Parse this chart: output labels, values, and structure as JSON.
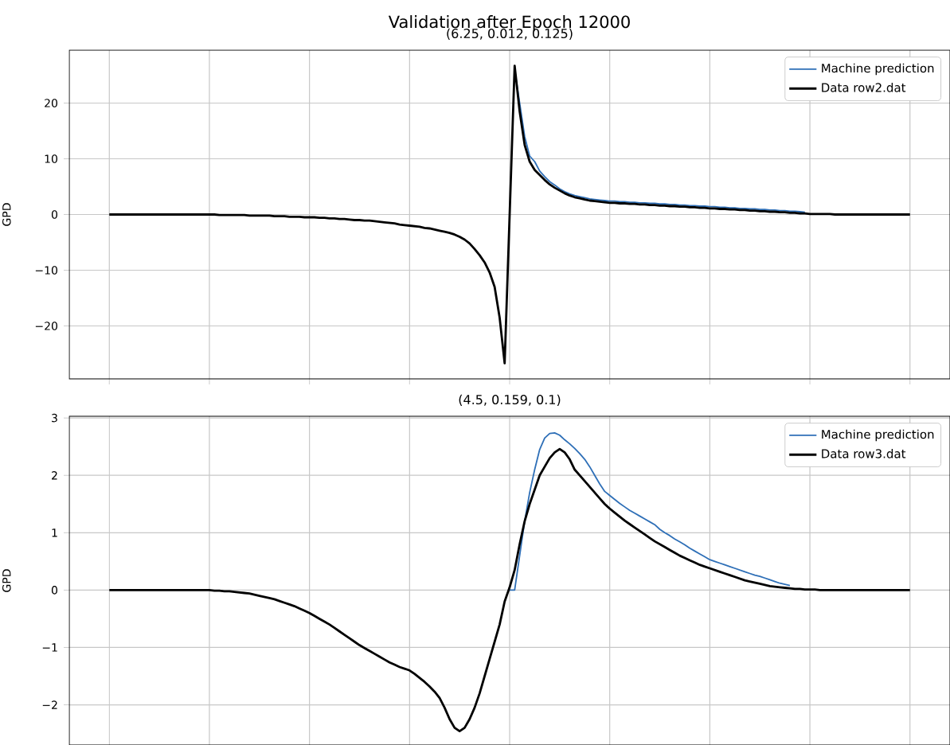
{
  "chart_data": [
    {
      "type": "line",
      "title": "Validation after Epoch 12000",
      "subtitle": "(6.25, 0.012, 0.125)",
      "ylabel": "GPD",
      "categories": [
        null,
        null,
        null,
        null,
        null,
        null,
        null,
        null,
        null,
        null,
        null,
        null,
        null,
        null,
        null,
        null,
        null,
        null,
        null,
        null,
        null,
        null,
        null,
        null,
        null,
        null,
        null,
        null,
        null,
        null,
        null,
        null,
        null,
        null,
        null,
        null,
        null,
        null,
        null,
        null,
        null,
        null,
        null,
        null,
        null,
        null,
        null,
        null,
        null,
        null,
        null,
        null,
        null,
        null,
        null,
        null,
        null,
        null,
        null,
        null,
        null,
        null,
        null,
        null,
        null,
        null,
        null,
        null,
        null,
        null,
        null,
        null,
        null,
        null,
        null,
        null,
        null,
        null,
        null,
        null,
        null,
        null,
        null,
        null,
        null,
        null,
        null,
        null,
        null,
        null,
        null,
        null,
        null,
        null,
        null,
        null,
        null,
        null,
        null,
        null,
        null,
        null,
        null,
        null,
        null,
        null,
        null,
        null,
        null,
        null,
        null,
        null,
        null,
        null,
        null,
        null,
        null,
        null,
        null,
        null,
        null,
        null,
        null,
        null,
        null,
        null,
        null,
        null,
        null,
        null,
        null,
        null,
        null,
        null,
        null,
        null,
        null,
        null,
        null,
        null,
        null,
        null,
        null,
        null,
        null,
        null,
        null,
        null,
        null,
        null,
        null,
        null,
        null,
        null,
        null,
        null,
        null,
        null,
        null,
        null,
        null
      ],
      "ylim": [
        -29.5,
        29.5
      ],
      "yticks": [
        {
          "value": -20,
          "label": "−20"
        },
        {
          "value": -10,
          "label": "−10"
        },
        0,
        10,
        20
      ],
      "tick_labels": "y",
      "grid": true,
      "legend": "top right",
      "series": [
        {
          "name": "Machine prediction",
          "color": "#2e6fb7",
          "values": [
            null,
            null,
            null,
            null,
            null,
            null,
            null,
            null,
            null,
            null,
            null,
            null,
            null,
            null,
            null,
            null,
            null,
            null,
            null,
            null,
            null,
            null,
            null,
            null,
            null,
            null,
            null,
            null,
            null,
            null,
            null,
            null,
            null,
            null,
            null,
            null,
            null,
            null,
            null,
            null,
            null,
            null,
            null,
            null,
            null,
            null,
            null,
            null,
            null,
            null,
            null,
            null,
            null,
            null,
            null,
            null,
            null,
            null,
            null,
            null,
            null,
            null,
            null,
            null,
            null,
            null,
            null,
            null,
            null,
            null,
            null,
            null,
            null,
            null,
            null,
            null,
            null,
            null,
            null,
            null,
            null,
            26,
            20,
            14,
            10.5,
            9.5,
            7.8,
            6.8,
            5.9,
            5.3,
            4.6,
            4.1,
            3.7,
            3.4,
            3.2,
            3.0,
            2.8,
            2.7,
            2.6,
            2.5,
            2.4,
            2.4,
            2.3,
            2.3,
            2.2,
            2.2,
            2.1,
            2.1,
            2.0,
            2.0,
            1.9,
            1.9,
            1.8,
            1.8,
            1.7,
            1.7,
            1.6,
            1.6,
            1.5,
            1.5,
            1.4,
            1.4,
            1.3,
            1.3,
            1.2,
            1.2,
            1.1,
            1.1,
            1.0,
            1.0,
            0.9,
            0.9,
            0.8,
            0.8,
            0.7,
            0.7,
            0.6,
            0.6,
            0.5,
            0.4,
            null,
            null,
            null,
            null,
            null,
            null,
            null,
            null,
            null,
            null,
            null,
            null,
            null,
            null,
            null,
            null,
            null,
            null,
            null,
            null,
            null
          ]
        },
        {
          "name": "Data row2.dat",
          "color": "#000000",
          "values": [
            0,
            0,
            0,
            0,
            0,
            0,
            0,
            0,
            0,
            0,
            0,
            0,
            0,
            0,
            0,
            0,
            0,
            0,
            0,
            0,
            0,
            0,
            -0.1,
            -0.1,
            -0.1,
            -0.1,
            -0.1,
            -0.1,
            -0.2,
            -0.2,
            -0.2,
            -0.2,
            -0.2,
            -0.3,
            -0.3,
            -0.3,
            -0.4,
            -0.4,
            -0.4,
            -0.5,
            -0.5,
            -0.5,
            -0.6,
            -0.6,
            -0.7,
            -0.7,
            -0.8,
            -0.8,
            -0.9,
            -1.0,
            -1.0,
            -1.1,
            -1.1,
            -1.2,
            -1.3,
            -1.4,
            -1.5,
            -1.6,
            -1.8,
            -1.9,
            -2.0,
            -2.1,
            -2.2,
            -2.4,
            -2.5,
            -2.7,
            -2.9,
            -3.1,
            -3.3,
            -3.6,
            -4.0,
            -4.5,
            -5.2,
            -6.2,
            -7.3,
            -8.6,
            -10.4,
            -13,
            -18.5,
            -26.7,
            0,
            26.7,
            18.5,
            12.5,
            9.5,
            8,
            7.1,
            6.2,
            5.4,
            4.8,
            4.3,
            3.8,
            3.4,
            3.1,
            2.9,
            2.7,
            2.5,
            2.4,
            2.3,
            2.2,
            2.1,
            2.1,
            2.0,
            2.0,
            1.9,
            1.9,
            1.8,
            1.8,
            1.7,
            1.7,
            1.6,
            1.6,
            1.5,
            1.5,
            1.4,
            1.4,
            1.3,
            1.3,
            1.2,
            1.2,
            1.1,
            1.1,
            1.0,
            1.0,
            0.9,
            0.9,
            0.8,
            0.8,
            0.7,
            0.7,
            0.6,
            0.6,
            0.5,
            0.5,
            0.4,
            0.4,
            0.3,
            0.3,
            0.2,
            0.2,
            0.1,
            0.1,
            0.1,
            0.1,
            0.1,
            0,
            0,
            0,
            0,
            0,
            0,
            0,
            0,
            0,
            0,
            0,
            0,
            0,
            0,
            0,
            0
          ]
        }
      ]
    },
    {
      "type": "line",
      "title": "(4.5, 0.159, 0.1)",
      "ylabel": "GPD",
      "categories": [
        null,
        null,
        null,
        null,
        null,
        null,
        null,
        null,
        null,
        null,
        null,
        null,
        null,
        null,
        null,
        null,
        null,
        null,
        null,
        null,
        null,
        null,
        null,
        null,
        null,
        null,
        null,
        null,
        null,
        null,
        null,
        null,
        null,
        null,
        null,
        null,
        null,
        null,
        null,
        null,
        null,
        null,
        null,
        null,
        null,
        null,
        null,
        null,
        null,
        null,
        null,
        null,
        null,
        null,
        null,
        null,
        null,
        null,
        null,
        null,
        null,
        null,
        null,
        null,
        null,
        null,
        null,
        null,
        null,
        null,
        null,
        null,
        null,
        null,
        null,
        null,
        null,
        null,
        null,
        null,
        null,
        null,
        null,
        null,
        null,
        null,
        null,
        null,
        null,
        null,
        null,
        null,
        null,
        null,
        null,
        null,
        null,
        null,
        null,
        null,
        null,
        null,
        null,
        null,
        null,
        null,
        null,
        null,
        null,
        null,
        null,
        null,
        null,
        null,
        null,
        null,
        null,
        null,
        null,
        null,
        null,
        null,
        null,
        null,
        null,
        null,
        null,
        null,
        null,
        null,
        null,
        null,
        null,
        null,
        null,
        null,
        null,
        null,
        null,
        null,
        null,
        null,
        null,
        null,
        null,
        null,
        null,
        null,
        null,
        null,
        null,
        null,
        null,
        null,
        null,
        null,
        null,
        null,
        null,
        null,
        null
      ],
      "ylim": [
        -2.7,
        3.03
      ],
      "yticks": [
        {
          "value": -2,
          "label": "−2"
        },
        {
          "value": -1,
          "label": "−1"
        },
        0,
        1,
        2,
        3
      ],
      "tick_labels": "y",
      "grid": true,
      "legend": "top right",
      "series": [
        {
          "name": "Machine prediction",
          "color": "#2e6fb7",
          "values": [
            null,
            null,
            null,
            null,
            null,
            null,
            null,
            null,
            null,
            null,
            null,
            null,
            null,
            null,
            null,
            null,
            null,
            null,
            null,
            null,
            null,
            null,
            null,
            null,
            null,
            null,
            null,
            null,
            null,
            null,
            null,
            null,
            null,
            null,
            null,
            null,
            null,
            null,
            null,
            null,
            null,
            null,
            null,
            null,
            null,
            null,
            null,
            null,
            null,
            null,
            null,
            null,
            null,
            null,
            null,
            null,
            null,
            null,
            null,
            null,
            null,
            null,
            null,
            null,
            null,
            null,
            null,
            null,
            null,
            null,
            null,
            null,
            null,
            null,
            null,
            null,
            null,
            null,
            null,
            null,
            0,
            0,
            0.6,
            1.2,
            1.7,
            2.1,
            2.45,
            2.65,
            2.73,
            2.74,
            2.7,
            2.62,
            2.55,
            2.47,
            2.38,
            2.28,
            2.15,
            2.0,
            1.85,
            1.72,
            1.65,
            1.58,
            1.51,
            1.45,
            1.39,
            1.34,
            1.29,
            1.24,
            1.19,
            1.14,
            1.06,
            1.0,
            0.95,
            0.89,
            0.84,
            0.79,
            0.73,
            0.68,
            0.63,
            0.58,
            0.53,
            0.5,
            0.47,
            0.44,
            0.41,
            0.38,
            0.35,
            0.32,
            0.29,
            0.26,
            0.24,
            0.21,
            0.18,
            0.15,
            0.12,
            0.1,
            0.08,
            null,
            null,
            null,
            null,
            null,
            null,
            null,
            null,
            null,
            null,
            null,
            null,
            null,
            null,
            null,
            null,
            null,
            null,
            null,
            null,
            null,
            null,
            null,
            null
          ]
        },
        {
          "name": "Data row3.dat",
          "color": "#000000",
          "values": [
            0,
            0,
            0,
            0,
            0,
            0,
            0,
            0,
            0,
            0,
            0,
            0,
            0,
            0,
            0,
            0,
            0,
            0,
            0,
            0,
            0,
            -0.01,
            -0.01,
            -0.02,
            -0.02,
            -0.03,
            -0.04,
            -0.05,
            -0.06,
            -0.08,
            -0.1,
            -0.12,
            -0.14,
            -0.16,
            -0.19,
            -0.22,
            -0.25,
            -0.28,
            -0.32,
            -0.36,
            -0.4,
            -0.45,
            -0.5,
            -0.55,
            -0.6,
            -0.66,
            -0.72,
            -0.78,
            -0.84,
            -0.9,
            -0.96,
            -1.01,
            -1.06,
            -1.11,
            -1.16,
            -1.21,
            -1.26,
            -1.3,
            -1.34,
            -1.37,
            -1.4,
            -1.46,
            -1.53,
            -1.6,
            -1.68,
            -1.77,
            -1.88,
            -2.05,
            -2.25,
            -2.4,
            -2.46,
            -2.4,
            -2.25,
            -2.05,
            -1.8,
            -1.5,
            -1.2,
            -0.9,
            -0.6,
            -0.2,
            0.05,
            0.35,
            0.8,
            1.2,
            1.5,
            1.75,
            2.0,
            2.15,
            2.3,
            2.4,
            2.46,
            2.4,
            2.28,
            2.1,
            2.0,
            1.9,
            1.8,
            1.7,
            1.6,
            1.5,
            1.42,
            1.35,
            1.28,
            1.21,
            1.15,
            1.09,
            1.03,
            0.97,
            0.91,
            0.85,
            0.8,
            0.75,
            0.7,
            0.65,
            0.6,
            0.56,
            0.52,
            0.48,
            0.44,
            0.41,
            0.38,
            0.35,
            0.32,
            0.29,
            0.26,
            0.23,
            0.2,
            0.17,
            0.15,
            0.13,
            0.11,
            0.09,
            0.07,
            0.06,
            0.05,
            0.04,
            0.03,
            0.02,
            0.02,
            0.01,
            0.01,
            0.01,
            0,
            0,
            0,
            0,
            0,
            0,
            0,
            0,
            0,
            0,
            0,
            0,
            0,
            0,
            0,
            0,
            0,
            0,
            0
          ]
        }
      ]
    }
  ]
}
